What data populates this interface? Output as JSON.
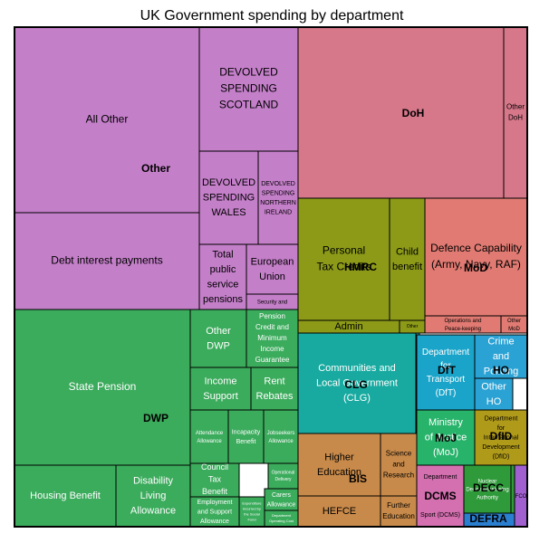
{
  "chart_data": {
    "type": "treemap",
    "title": "UK Government spending by department",
    "colors": {
      "Other": "#c47fc9",
      "DoH": "#d6778a",
      "HMRC": "#8c9a18",
      "MoD": "#e07a72",
      "DWP": "#3bab5c",
      "CLG": "#18aaa0",
      "DfT": "#1aa4c9",
      "HO": "#2aa2d4",
      "MoJ": "#27b36a",
      "DfID": "#b09a1a",
      "BIS": "#c88a4a",
      "DCMS": "#d46fb0",
      "DECC": "#2e9a3a",
      "DEFRA": "#2b7fd0",
      "FCO": "#a060d0"
    },
    "groups": [
      {
        "name": "Other",
        "items": [
          {
            "label": "All Other"
          },
          {
            "label": "DEVOLVED SPENDING SCOTLAND"
          },
          {
            "label": "DEVOLVED SPENDING WALES"
          },
          {
            "label": "DEVOLVED SPENDING NORTHERN IRELAND"
          },
          {
            "label": "Debt interest payments"
          },
          {
            "label": "Total public service pensions"
          },
          {
            "label": "European Union"
          },
          {
            "label": "Security and"
          }
        ]
      },
      {
        "name": "DoH",
        "items": [
          {
            "label": "DoH"
          },
          {
            "label": "Other DoH"
          }
        ]
      },
      {
        "name": "HMRC",
        "items": [
          {
            "label": "Personal Tax Credits"
          },
          {
            "label": "Child benefit"
          },
          {
            "label": "Admin"
          },
          {
            "label": "Other"
          }
        ]
      },
      {
        "name": "MoD",
        "items": [
          {
            "label": "Defence Capability (Army, Navy, RAF)"
          },
          {
            "label": "Operations and Peace-keeping"
          },
          {
            "label": "Other MoD"
          }
        ]
      },
      {
        "name": "DWP",
        "items": [
          {
            "label": "State Pension"
          },
          {
            "label": "Other DWP"
          },
          {
            "label": "Pension Credit and Minimum Income Guarantee"
          },
          {
            "label": "Income Support"
          },
          {
            "label": "Rent Rebates"
          },
          {
            "label": "Attendance Allowance"
          },
          {
            "label": "Incapacity Benefit"
          },
          {
            "label": "Jobseekers Allowance"
          },
          {
            "label": "Housing Benefit"
          },
          {
            "label": "Disability Living Allowance"
          },
          {
            "label": "Council Tax Benefit"
          },
          {
            "label": "Employment and Support Allowance"
          },
          {
            "label": "Expenditure incurred by the Social Fund"
          },
          {
            "label": "Operational Delivery"
          },
          {
            "label": "Carers Allowance"
          },
          {
            "label": "Department Operating Cost"
          }
        ]
      },
      {
        "name": "CLG",
        "items": [
          {
            "label": "Communities and Local Government (CLG)"
          },
          {
            "label": ""
          }
        ]
      },
      {
        "name": "DfT",
        "items": [
          {
            "label": "Department for Transport (DfT)"
          }
        ]
      },
      {
        "name": "HO",
        "items": [
          {
            "label": "Crime and Policing"
          },
          {
            "label": "Other HO"
          }
        ]
      },
      {
        "name": "MoJ",
        "items": [
          {
            "label": "Ministry of Justice (MoJ)"
          }
        ]
      },
      {
        "name": "DfID",
        "items": [
          {
            "label": "Department for International Development (DfID)"
          }
        ]
      },
      {
        "name": "BIS",
        "items": [
          {
            "label": "Higher Education"
          },
          {
            "label": "Science and Research"
          },
          {
            "label": "HEFCE"
          },
          {
            "label": "Further Education"
          }
        ]
      },
      {
        "name": "DCMS",
        "items": [
          {
            "label": "Department for Culture, Media and Sport (DCMS)"
          }
        ]
      },
      {
        "name": "DECC",
        "items": [
          {
            "label": "Nuclear Decommissioning Authority"
          },
          {
            "label": ""
          }
        ]
      },
      {
        "name": "DEFRA",
        "items": [
          {
            "label": ""
          }
        ]
      },
      {
        "name": "FCO",
        "items": [
          {
            "label": "FCO"
          }
        ]
      }
    ]
  }
}
